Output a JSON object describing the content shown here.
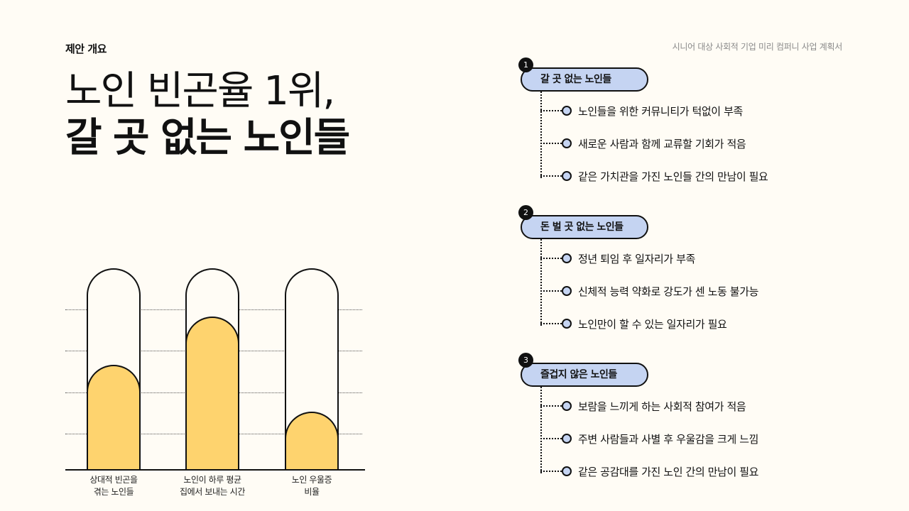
{
  "header": {
    "eyebrow": "제안 개요",
    "doc_title": "시니어 대상 사회적 기업 미리 컴퍼니 사업 계획서"
  },
  "headline": {
    "line1": "노인 빈곤율 1위,",
    "line2": "갈 곳 없는 노인들"
  },
  "chart_data": {
    "type": "bar",
    "title": "",
    "xlabel": "",
    "ylabel": "",
    "categories": [
      "상대적 빈곤을 겪는 노인들",
      "노인이 하루 평균 집에서 보내는 시간",
      "노인 우울증 비율"
    ],
    "values": [
      52,
      76,
      29
    ],
    "value_unit": "% of capsule height (estimated, no axis labels shown)",
    "ylim": [
      0,
      100
    ],
    "grid": true,
    "gridline_count": 4,
    "colors": {
      "fill": "#fed36e",
      "outline": "#111111"
    },
    "labels_lines": [
      [
        "상대적 빈곤을",
        "겪는 노인들"
      ],
      [
        "노인이 하루 평균",
        "집에서 보내는 시간"
      ],
      [
        "노인 우울증",
        "비율"
      ]
    ]
  },
  "sections": [
    {
      "number": "1",
      "title": "갈 곳 없는 노인들",
      "items": [
        "노인들을 위한 커뮤니티가 턱없이 부족",
        "새로운 사람과 함께 교류할 기회가 적음",
        "같은 가치관을 가진 노인들 간의 만남이 필요"
      ]
    },
    {
      "number": "2",
      "title": "돈 벌 곳 없는 노인들",
      "items": [
        "정년 퇴임 후 일자리가 부족",
        "신체적 능력 약화로 강도가 센 노동 불가능",
        "노인만이 할 수 있는 일자리가 필요"
      ]
    },
    {
      "number": "3",
      "title": "즐겁지 않은 노인들",
      "items": [
        "보람을 느끼게 하는 사회적 참여가 적음",
        "주변 사람들과 사별 후 우울감을 크게 느낌",
        "같은 공감대를 가진 노인 간의 만남이 필요"
      ]
    }
  ],
  "colors": {
    "background": "#fffcf5",
    "accent_blue": "#c5d4f2",
    "accent_yellow": "#fed36e",
    "ink": "#111111"
  }
}
